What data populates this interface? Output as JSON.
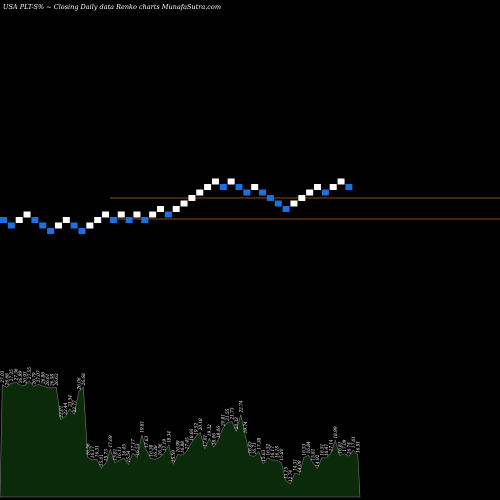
{
  "chart_data": {
    "type": "renko",
    "title": "USA PLT-S% ~  Closing Daily data  Renko  charts MunafaSutra.com",
    "colors": {
      "background": "#000000",
      "up_brick": "#ffffff",
      "down_brick": "#1f6fe0",
      "support_resistance_line": "#b5651d",
      "volume_fill": "#0a2a0a",
      "volume_outline": "#7a7a7a",
      "volume_label": "#ffffff"
    },
    "bricks": [
      {
        "dir": "down",
        "level": 0
      },
      {
        "dir": "down",
        "level": -1
      },
      {
        "dir": "up",
        "level": 0
      },
      {
        "dir": "up",
        "level": 1
      },
      {
        "dir": "down",
        "level": 0
      },
      {
        "dir": "down",
        "level": -1
      },
      {
        "dir": "down",
        "level": -2
      },
      {
        "dir": "up",
        "level": -1
      },
      {
        "dir": "up",
        "level": 0
      },
      {
        "dir": "down",
        "level": -1
      },
      {
        "dir": "down",
        "level": -2
      },
      {
        "dir": "up",
        "level": -1
      },
      {
        "dir": "up",
        "level": 0
      },
      {
        "dir": "up",
        "level": 1
      },
      {
        "dir": "down",
        "level": 0
      },
      {
        "dir": "up",
        "level": 1
      },
      {
        "dir": "down",
        "level": 0
      },
      {
        "dir": "up",
        "level": 1
      },
      {
        "dir": "down",
        "level": 0
      },
      {
        "dir": "up",
        "level": 1
      },
      {
        "dir": "up",
        "level": 2
      },
      {
        "dir": "down",
        "level": 1
      },
      {
        "dir": "up",
        "level": 2
      },
      {
        "dir": "up",
        "level": 3
      },
      {
        "dir": "up",
        "level": 4
      },
      {
        "dir": "up",
        "level": 5
      },
      {
        "dir": "up",
        "level": 6
      },
      {
        "dir": "up",
        "level": 7
      },
      {
        "dir": "down",
        "level": 6
      },
      {
        "dir": "up",
        "level": 7
      },
      {
        "dir": "down",
        "level": 6
      },
      {
        "dir": "down",
        "level": 5
      },
      {
        "dir": "up",
        "level": 6
      },
      {
        "dir": "down",
        "level": 5
      },
      {
        "dir": "down",
        "level": 4
      },
      {
        "dir": "down",
        "level": 3
      },
      {
        "dir": "down",
        "level": 2
      },
      {
        "dir": "up",
        "level": 3
      },
      {
        "dir": "up",
        "level": 4
      },
      {
        "dir": "up",
        "level": 5
      },
      {
        "dir": "up",
        "level": 6
      },
      {
        "dir": "down",
        "level": 5
      },
      {
        "dir": "up",
        "level": 6
      },
      {
        "dir": "up",
        "level": 7
      },
      {
        "dir": "down",
        "level": 6
      }
    ],
    "horizontal_lines_levels": [
      4,
      0
    ],
    "volume_labels": [
      "27.03",
      "26.68",
      "27.25",
      "27.36",
      "26.99",
      "26.93",
      "27.55",
      "26.79",
      "27.07",
      "26.86",
      "26.61",
      "26.58",
      "26.63",
      "22.01",
      "22.44",
      "23.54",
      "22.77",
      "26.06",
      "26.68",
      "16.56",
      "16.17",
      "16.31",
      "15.01",
      "15.73",
      "17.69",
      "15.81",
      "16.11",
      "16.45",
      "15.54",
      "17.17",
      "16.53",
      "19.81",
      "17.63",
      "16.38",
      "16.28",
      "16.56",
      "17.19",
      "18.34",
      "15.59",
      "16.99",
      "16.88",
      "17.45",
      "18.66",
      "19.52",
      "20.18",
      "17.81",
      "19.32",
      "18.06",
      "19.06",
      "20.81",
      "21.55",
      "21.73",
      "20.33",
      "22.74",
      "19.74",
      "16.83",
      "16.71",
      "17.38",
      "15.63",
      "16.52",
      "16.17",
      "16.18",
      "15.80",
      "13.15",
      "12.74",
      "14.31",
      "14.09",
      "16.53",
      "16.84",
      "15.81",
      "14.92",
      "16.51",
      "16.47",
      "17.14",
      "18.99",
      "16.81",
      "17.09",
      "16.74",
      "17.61",
      "16.91"
    ]
  }
}
